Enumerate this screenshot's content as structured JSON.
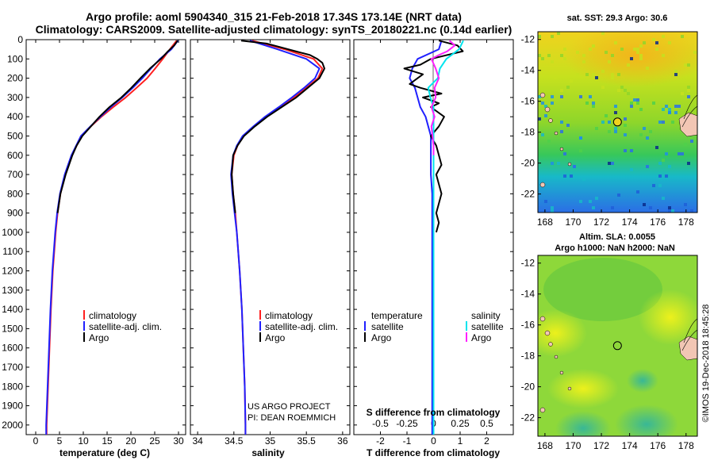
{
  "title_line1": "Argo profile: aoml 5904340_315 21-Feb-2018 17.34S 173.14E (NRT data)",
  "title_line2": "Climatology: CARS2009. Satellite-adjusted climatology: synTS_20180221.nc (0.14d earlier)",
  "credit_line1": "US ARGO PROJECT",
  "credit_line2": "PI: DEAN ROEMMICH",
  "imos_stamp": "©IMOS 19-Dec-2018 18:45:28",
  "colors": {
    "climatology": "#ff2020",
    "satellite": "#2020ff",
    "argo": "#000000",
    "salinity_satellite": "#00e5ee",
    "salinity_argo": "#ff20ff"
  },
  "chart_data": [
    {
      "type": "line",
      "name": "temperature-profile",
      "xlabel": "temperature (deg C)",
      "xlim": [
        -2,
        31.5
      ],
      "ylim": [
        0,
        2050
      ],
      "y_inverted": true,
      "xticks": [
        0,
        5,
        10,
        15,
        20,
        25,
        30
      ],
      "yticks": [
        0,
        100,
        200,
        300,
        400,
        500,
        600,
        700,
        800,
        900,
        1000,
        1100,
        1200,
        1300,
        1400,
        1500,
        1600,
        1700,
        1800,
        1900,
        2000
      ],
      "ytick_labels": [
        "0",
        "100",
        "200",
        "300",
        "400",
        "500",
        "600",
        "700",
        "800",
        "900",
        "1000",
        "1100",
        "1200",
        "1300",
        "1400",
        "1500",
        "1600",
        "1700",
        "1800",
        "1900",
        "2000"
      ],
      "legend": [
        "climatology",
        "satellite-adj. clim.",
        "Argo"
      ],
      "series": [
        {
          "name": "climatology",
          "depth": [
            5,
            50,
            100,
            150,
            200,
            250,
            300,
            350,
            400,
            450,
            500,
            600,
            700,
            800,
            900,
            1000,
            1200,
            1400,
            1600,
            1800,
            2000,
            2050
          ],
          "values": [
            29.6,
            28.2,
            26.7,
            25.1,
            23.4,
            21.2,
            18.9,
            16.3,
            13.8,
            11.6,
            9.6,
            7.6,
            6.2,
            5.2,
            4.6,
            4.2,
            3.6,
            3.2,
            2.9,
            2.6,
            2.3,
            2.3
          ]
        },
        {
          "name": "satellite-adj. clim.",
          "depth": [
            5,
            50,
            100,
            150,
            200,
            250,
            300,
            350,
            400,
            450,
            500,
            600,
            700,
            800,
            900,
            1000,
            1200,
            1400,
            1600,
            1800,
            2000,
            2050
          ],
          "values": [
            29.9,
            28.5,
            26.1,
            24.2,
            22.4,
            20.4,
            18.2,
            15.8,
            13.6,
            11.5,
            9.5,
            7.5,
            6.1,
            5.1,
            4.5,
            4.1,
            3.5,
            3.1,
            2.8,
            2.5,
            2.2,
            2.2
          ]
        },
        {
          "name": "Argo",
          "depth": [
            5,
            30,
            60,
            100,
            150,
            200,
            250,
            300,
            350,
            400,
            450,
            500,
            550,
            600,
            700,
            800,
            900
          ],
          "values": [
            29.8,
            29.1,
            27.8,
            26.3,
            24.0,
            22.0,
            20.1,
            18.0,
            15.5,
            13.4,
            11.6,
            9.8,
            8.6,
            7.7,
            6.3,
            5.2,
            4.6
          ]
        }
      ]
    },
    {
      "type": "line",
      "name": "salinity-profile",
      "xlabel": "salinity",
      "xlim": [
        33.9,
        36.1
      ],
      "ylim": [
        0,
        2050
      ],
      "y_inverted": true,
      "xticks": [
        34,
        34.5,
        35,
        35.5,
        36
      ],
      "legend": [
        "climatology",
        "satellite-adj. clim.",
        "Argo"
      ],
      "series": [
        {
          "name": "climatology",
          "depth": [
            5,
            50,
            100,
            150,
            200,
            250,
            300,
            350,
            400,
            450,
            500,
            550,
            600,
            700,
            800,
            900,
            1000,
            1200,
            1400,
            1600,
            1800,
            2000,
            2050
          ],
          "values": [
            34.75,
            35.2,
            35.6,
            35.72,
            35.66,
            35.5,
            35.33,
            35.14,
            34.95,
            34.78,
            34.63,
            34.55,
            34.5,
            34.47,
            34.49,
            34.52,
            34.54,
            34.58,
            34.61,
            34.63,
            34.65,
            34.66,
            34.66
          ]
        },
        {
          "name": "satellite-adj. clim.",
          "depth": [
            5,
            50,
            100,
            150,
            200,
            250,
            300,
            350,
            400,
            450,
            500,
            550,
            600,
            700,
            800,
            900,
            1000,
            1200,
            1400,
            1600,
            1800,
            2000,
            2050
          ],
          "values": [
            34.72,
            35.1,
            35.5,
            35.68,
            35.62,
            35.47,
            35.3,
            35.12,
            34.93,
            34.77,
            34.62,
            34.54,
            34.49,
            34.46,
            34.48,
            34.51,
            34.54,
            34.58,
            34.61,
            34.63,
            34.65,
            34.66,
            34.66
          ]
        },
        {
          "name": "Argo",
          "depth": [
            5,
            20,
            40,
            60,
            80,
            100,
            120,
            150,
            200,
            250,
            300,
            350,
            400,
            450,
            500,
            550,
            600,
            700,
            800,
            900
          ],
          "values": [
            34.6,
            34.95,
            35.15,
            35.35,
            35.55,
            35.65,
            35.72,
            35.75,
            35.68,
            35.52,
            35.36,
            35.16,
            34.96,
            34.79,
            34.64,
            34.55,
            34.49,
            34.47,
            34.49,
            34.52
          ]
        }
      ]
    },
    {
      "type": "line",
      "name": "difference-profile",
      "xlabel": "T difference from climatology",
      "xlabel2": "S difference from climatology",
      "xlim": [
        -3,
        3
      ],
      "ylim": [
        0,
        2050
      ],
      "y_inverted": true,
      "xticks": [
        -2,
        -1,
        0,
        1,
        2
      ],
      "xticks2": [
        -0.5,
        -0.25,
        0,
        0.25,
        0.5
      ],
      "xtick2_labels": [
        "-0.5",
        "-0.25",
        "0",
        "0.25",
        "0.5"
      ],
      "legend_temperature": {
        "title": "temperature",
        "items": [
          "satellite",
          "Argo"
        ]
      },
      "legend_salinity": {
        "title": "salinity",
        "items": [
          "satellite",
          "Argo"
        ]
      },
      "series": [
        {
          "name": "temperature satellite",
          "depth": [
            5,
            50,
            100,
            150,
            200,
            250,
            300,
            350,
            400,
            450,
            500,
            600,
            700,
            800,
            900,
            1000,
            1200,
            1400,
            1600,
            1800,
            2000,
            2050
          ],
          "values": [
            0.3,
            0.2,
            -0.6,
            -0.8,
            -0.9,
            -0.7,
            -0.6,
            -0.5,
            -0.3,
            -0.2,
            -0.1,
            -0.1,
            -0.1,
            -0.05,
            -0.05,
            -0.05,
            -0.05,
            -0.05,
            -0.05,
            -0.05,
            -0.05,
            -0.05
          ]
        },
        {
          "name": "temperature Argo",
          "depth": [
            5,
            30,
            60,
            100,
            130,
            150,
            180,
            200,
            230,
            250,
            280,
            300,
            330,
            350,
            400,
            450,
            500,
            550,
            600,
            650,
            700,
            750,
            800,
            850,
            900,
            950,
            1000
          ],
          "values": [
            0.2,
            0.9,
            1.1,
            -0.1,
            -0.5,
            -1.1,
            -0.4,
            -0.6,
            -0.9,
            -0.5,
            0.3,
            -0.4,
            0.2,
            -0.1,
            0.4,
            0.2,
            -0.1,
            0.1,
            0.2,
            0.3,
            0.1,
            0.2,
            0.3,
            0.2,
            0.1,
            0.2,
            0.1
          ]
        },
        {
          "name": "salinity satellite",
          "depth": [
            5,
            50,
            100,
            150,
            200,
            250,
            300,
            350,
            400,
            450,
            500,
            600,
            700,
            800,
            900,
            1000,
            1200,
            1400,
            1600,
            1800,
            2000,
            2050
          ],
          "values": [
            0.28,
            0.24,
            0.12,
            0.06,
            0.04,
            -0.05,
            -0.03,
            0.0,
            0.0,
            0.0,
            0.0,
            0.0,
            0.0,
            0.0,
            0.0,
            0.0,
            0.0,
            0.0,
            0.0,
            0.0,
            0.0,
            0.0
          ]
        },
        {
          "name": "salinity Argo",
          "depth": [
            5,
            30,
            60,
            80,
            100,
            150,
            200,
            250,
            300,
            350,
            400,
            450,
            500,
            550,
            600
          ],
          "values": [
            0.15,
            0.2,
            0.13,
            0.05,
            -0.02,
            0.02,
            0.05,
            0.01,
            0.02,
            -0.02,
            0.01,
            -0.02,
            -0.01,
            0.0,
            0.0
          ]
        }
      ]
    },
    {
      "type": "heatmap",
      "name": "sst-map",
      "title": "sat. SST: 29.3 Argo: 30.6",
      "xticks": [
        168,
        170,
        172,
        174,
        176,
        178
      ],
      "yticks": [
        -12,
        -14,
        -16,
        -18,
        -20,
        -22
      ],
      "xlim": [
        167.5,
        178.8
      ],
      "ylim": [
        -23.2,
        -11.5
      ],
      "float_position": {
        "lon": 173.14,
        "lat": -17.34
      }
    },
    {
      "type": "heatmap",
      "name": "sla-map",
      "title": "Altim. SLA: 0.0055",
      "subtitle": "Argo h1000: NaN h2000: NaN",
      "xticks": [
        168,
        170,
        172,
        174,
        176,
        178
      ],
      "yticks": [
        -12,
        -14,
        -16,
        -18,
        -20,
        -22
      ],
      "xlim": [
        167.5,
        178.8
      ],
      "ylim": [
        -23.2,
        -11.5
      ],
      "float_position": {
        "lon": 173.14,
        "lat": -17.34
      }
    }
  ]
}
